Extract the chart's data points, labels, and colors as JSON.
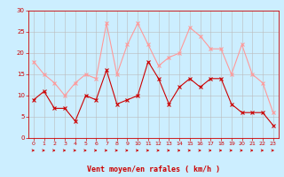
{
  "xlabel": "Vent moyen/en rafales ( km/h )",
  "x": [
    0,
    1,
    2,
    3,
    4,
    5,
    6,
    7,
    8,
    9,
    10,
    11,
    12,
    13,
    14,
    15,
    16,
    17,
    18,
    19,
    20,
    21,
    22,
    23
  ],
  "y_mean": [
    9,
    11,
    7,
    7,
    4,
    10,
    9,
    16,
    8,
    9,
    10,
    18,
    14,
    8,
    12,
    14,
    12,
    14,
    14,
    8,
    6,
    6,
    6,
    3
  ],
  "y_gust": [
    18,
    15,
    13,
    10,
    13,
    15,
    14,
    27,
    15,
    22,
    27,
    22,
    17,
    19,
    20,
    26,
    24,
    21,
    21,
    15,
    22,
    15,
    13,
    6
  ],
  "mean_color": "#cc0000",
  "gust_color": "#ff9999",
  "bg_color": "#cceeff",
  "grid_color": "#bbbbbb",
  "axis_color": "#cc0000",
  "ylim": [
    0,
    30
  ],
  "yticks": [
    0,
    5,
    10,
    15,
    20,
    25,
    30
  ],
  "xlim": [
    -0.5,
    23.5
  ]
}
